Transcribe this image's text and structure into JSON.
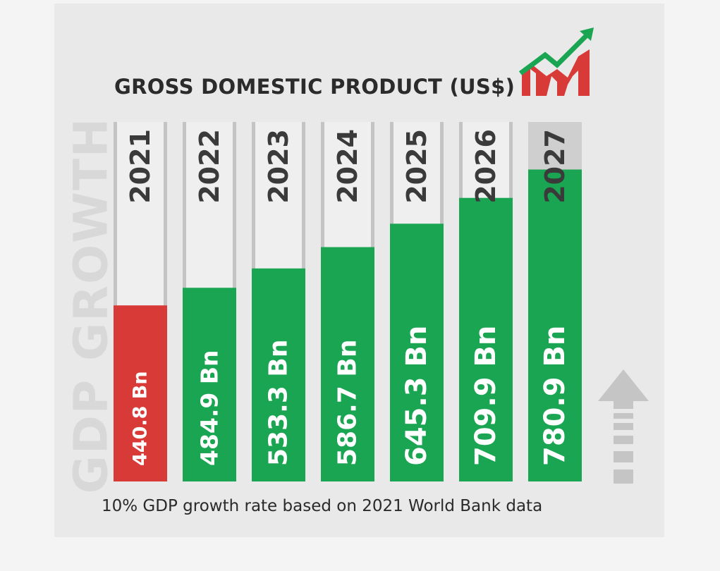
{
  "chart_data": {
    "type": "bar",
    "title": "GROSS DOMESTIC PRODUCT (US$)",
    "side_title": "GDP GROWTH",
    "footnote": "10% GDP growth rate based on 2021 World Bank data",
    "categories": [
      "2021",
      "2022",
      "2023",
      "2024",
      "2025",
      "2026",
      "2027"
    ],
    "values": [
      440.8,
      484.9,
      533.3,
      586.7,
      645.3,
      709.9,
      780.9
    ],
    "value_labels": [
      "440.8 Bn",
      "484.9 Bn",
      "533.3 Bn",
      "586.7 Bn",
      "645.3 Bn",
      "709.9 Bn",
      "780.9 Bn"
    ],
    "unit": "Bn",
    "ylim": [
      0,
      900
    ],
    "grid": false,
    "colors": {
      "highlight": "#d83a38",
      "bar": "#19a552",
      "track": "#efefef",
      "track_2027": "#cfcfcf",
      "year_text": "#3a3a3a",
      "value_text": "#ffffff",
      "trend_arrow": "#19a552",
      "trend_bars": "#d83a38",
      "up_arrow": "#c5c5c5"
    },
    "icons": [
      "growth-chart-icon",
      "up-arrow-icon"
    ]
  }
}
